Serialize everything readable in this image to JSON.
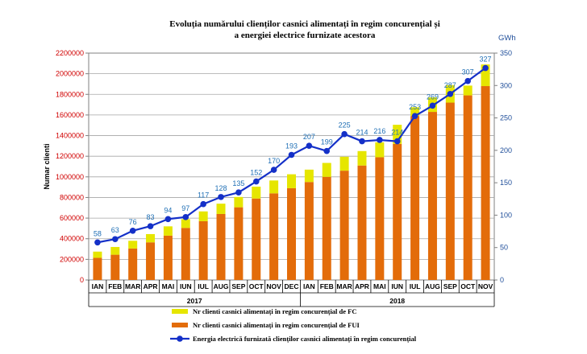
{
  "chart_data": {
    "type": "bar",
    "title_lines": [
      "Evoluția numărului clienților casnici alimentați în regim concurențial și",
      "a energiei electrice furnizate acestora"
    ],
    "ylabel": "Numar clienti",
    "y2label": "GWh",
    "ylim": [
      0,
      2200000
    ],
    "y_ticks": [
      0,
      200000,
      400000,
      600000,
      800000,
      1000000,
      1200000,
      1400000,
      1600000,
      1800000,
      2000000,
      2200000
    ],
    "y2lim": [
      0,
      350
    ],
    "y2_ticks": [
      0,
      50,
      100,
      150,
      200,
      250,
      300,
      350
    ],
    "categories": [
      "IAN",
      "FEB",
      "MAR",
      "APR",
      "MAI",
      "IUN",
      "IUL",
      "AUG",
      "SEP",
      "OCT",
      "NOV",
      "DEC",
      "IAN",
      "FEB",
      "MAR",
      "APR",
      "MAI",
      "IUN",
      "IUL",
      "AUG",
      "SEP",
      "OCT",
      "NOV"
    ],
    "year_groups": [
      {
        "label": "2017",
        "count": 12
      },
      {
        "label": "2018",
        "count": 11
      }
    ],
    "stacked": true,
    "grid": "horizontal",
    "legend_position": "bottom",
    "series": [
      {
        "name": "Nr clienti casnici alimentați în regim concurențial de FUI",
        "kind": "bar",
        "axis": "left",
        "color": "#e36c0a",
        "values": [
          215000,
          245000,
          305000,
          365000,
          430000,
          505000,
          570000,
          640000,
          705000,
          790000,
          840000,
          890000,
          950000,
          1000000,
          1060000,
          1110000,
          1190000,
          1320000,
          1590000,
          1630000,
          1720000,
          1790000,
          1880000
        ]
      },
      {
        "name": "Nr clienti casnici alimentați în regim concurențial de FC",
        "kind": "bar",
        "axis": "left",
        "color": "#e6e600",
        "values": [
          60000,
          75000,
          75000,
          80000,
          90000,
          85000,
          95000,
          100000,
          100000,
          115000,
          125000,
          135000,
          120000,
          135000,
          135000,
          140000,
          145000,
          185000,
          85000,
          140000,
          170000,
          95000,
          210000
        ]
      },
      {
        "name": "Energia electrică furnizată clienților casnici alimentați în regim concurențial",
        "kind": "line",
        "axis": "right",
        "color": "#1430c8",
        "values": [
          58,
          63,
          76,
          83,
          94,
          97,
          117,
          128,
          135,
          152,
          170,
          193,
          207,
          199,
          225,
          214,
          216,
          214,
          253,
          269,
          287,
          307,
          327
        ]
      }
    ]
  }
}
